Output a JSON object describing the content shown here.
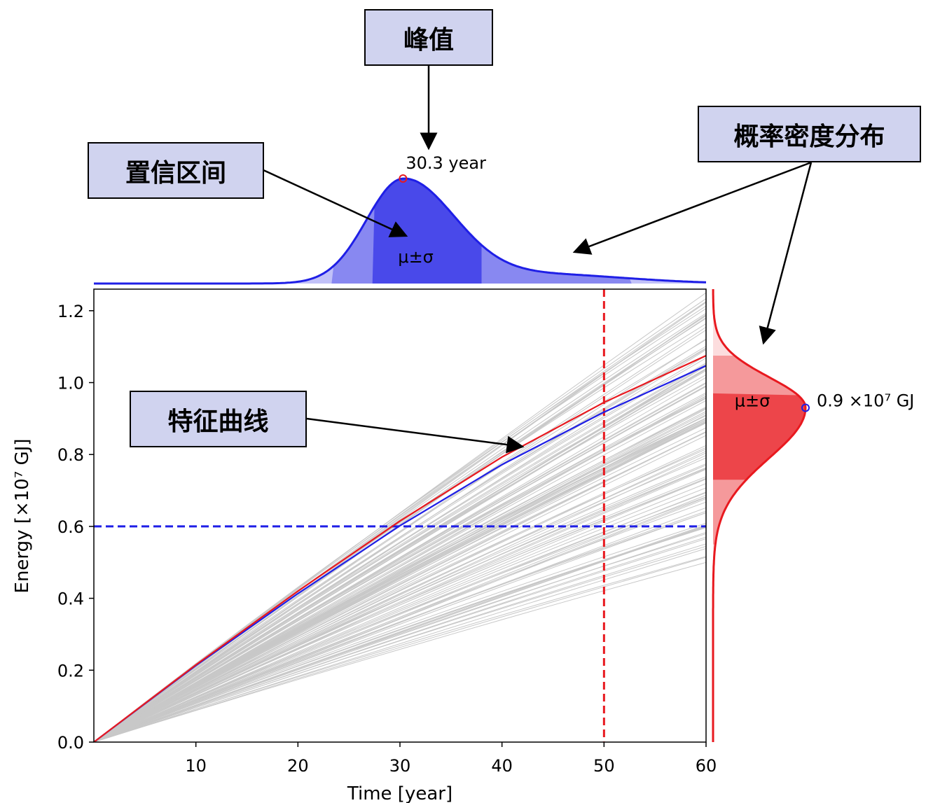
{
  "chart_data": {
    "type": "line",
    "title": "",
    "xlabel": "Time [year]",
    "ylabel": "Energy [×10⁷ GJ]",
    "xlim": [
      0,
      60
    ],
    "ylim": [
      0,
      1.26
    ],
    "xticks": [
      10,
      20,
      30,
      40,
      50,
      60
    ],
    "yticks": [
      0.0,
      0.2,
      0.4,
      0.6,
      0.8,
      1.0,
      1.2
    ],
    "ytick_labels": [
      "0.0",
      "0.2",
      "0.4",
      "0.6",
      "0.8",
      "1.0",
      "1.2"
    ],
    "ensemble": {
      "description_count": 120,
      "final_value_min": 0.5,
      "final_value_max": 1.25,
      "color": "#c8c8c8"
    },
    "series": [
      {
        "name": "red characteristic curve",
        "color": "#e8191f",
        "x": [
          0,
          10,
          20,
          30,
          40,
          50,
          60
        ],
        "y": [
          0,
          0.215,
          0.42,
          0.615,
          0.793,
          0.945,
          1.075
        ]
      },
      {
        "name": "blue characteristic curve",
        "color": "#1f1fe6",
        "x": [
          0,
          10,
          20,
          30,
          40,
          50,
          60
        ],
        "y": [
          0,
          0.213,
          0.413,
          0.602,
          0.772,
          0.918,
          1.047
        ]
      }
    ],
    "reference_lines": [
      {
        "orientation": "vertical",
        "x": 50,
        "color": "#e8191f",
        "style": "dashed"
      },
      {
        "orientation": "horizontal",
        "y": 0.6,
        "color": "#1f1fe6",
        "style": "dashed"
      }
    ],
    "top_density": {
      "description": "Time at which energy reaches 0.6",
      "peak_x": 30.3,
      "peak_label": "30.3 year",
      "sigma_band": [
        27.3,
        38.0
      ],
      "two_sigma_band": [
        23.3,
        52.7
      ],
      "band_label": "μ±σ",
      "color": "#1f1fe6"
    },
    "right_density": {
      "description": "Energy at year 50",
      "peak_y": 0.93,
      "peak_label": "0.9 ×10⁷ GJ",
      "sigma_band": [
        0.73,
        0.97
      ],
      "two_sigma_band": [
        0.55,
        1.075
      ],
      "band_label": "μ±σ",
      "color": "#e8191f"
    }
  },
  "callouts": {
    "peak": "峰值",
    "confidence_interval": "置信区间",
    "pdf": "概率密度分布",
    "characteristic_curve": "特征曲线"
  }
}
